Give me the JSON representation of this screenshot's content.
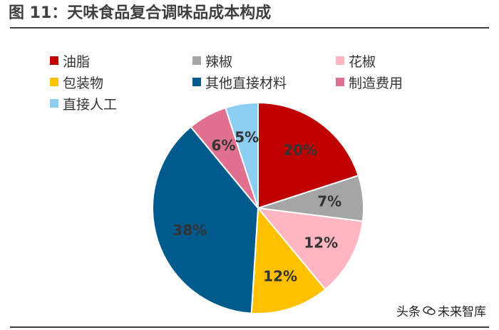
{
  "figure": {
    "title": "图 11：天味食品复合调味品成本构成"
  },
  "chart_data": {
    "type": "pie",
    "title": "",
    "legend_placement": "top",
    "slices": [
      {
        "label": "油脂",
        "value": 20,
        "display": "20%",
        "color": "#C00000"
      },
      {
        "label": "辣椒",
        "value": 7,
        "display": "7%",
        "color": "#A5A5A5"
      },
      {
        "label": "花椒",
        "value": 12,
        "display": "12%",
        "color": "#FFB6C1"
      },
      {
        "label": "包装物",
        "value": 12,
        "display": "12%",
        "color": "#FFC000"
      },
      {
        "label": "其他直接材料",
        "value": 38,
        "display": "38%",
        "color": "#005A8C"
      },
      {
        "label": "制造费用",
        "value": 6,
        "display": "6%",
        "color": "#E07090"
      },
      {
        "label": "直接人工",
        "value": 5,
        "display": "5%",
        "color": "#8DCDF2"
      }
    ]
  },
  "watermark": {
    "prefix": "头条",
    "name": "未来智库"
  }
}
